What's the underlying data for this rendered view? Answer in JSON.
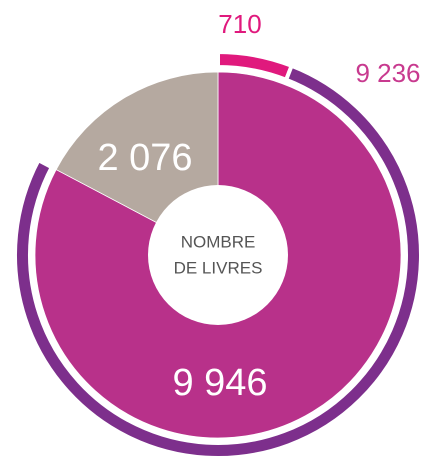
{
  "chart_data": {
    "type": "pie",
    "center_label": [
      "NOMBRE",
      "DE LIVRES"
    ],
    "series": [
      {
        "values": [
          9946,
          2076
        ],
        "value_labels": [
          "9 946",
          "2 076"
        ],
        "colors": [
          "#b8318a",
          "#b5a9a0"
        ]
      },
      {
        "values": [
          710,
          9236
        ],
        "value_labels": [
          "710",
          "9 236"
        ],
        "colors": [
          "#e0197d",
          "#7d2f8c"
        ]
      }
    ]
  }
}
